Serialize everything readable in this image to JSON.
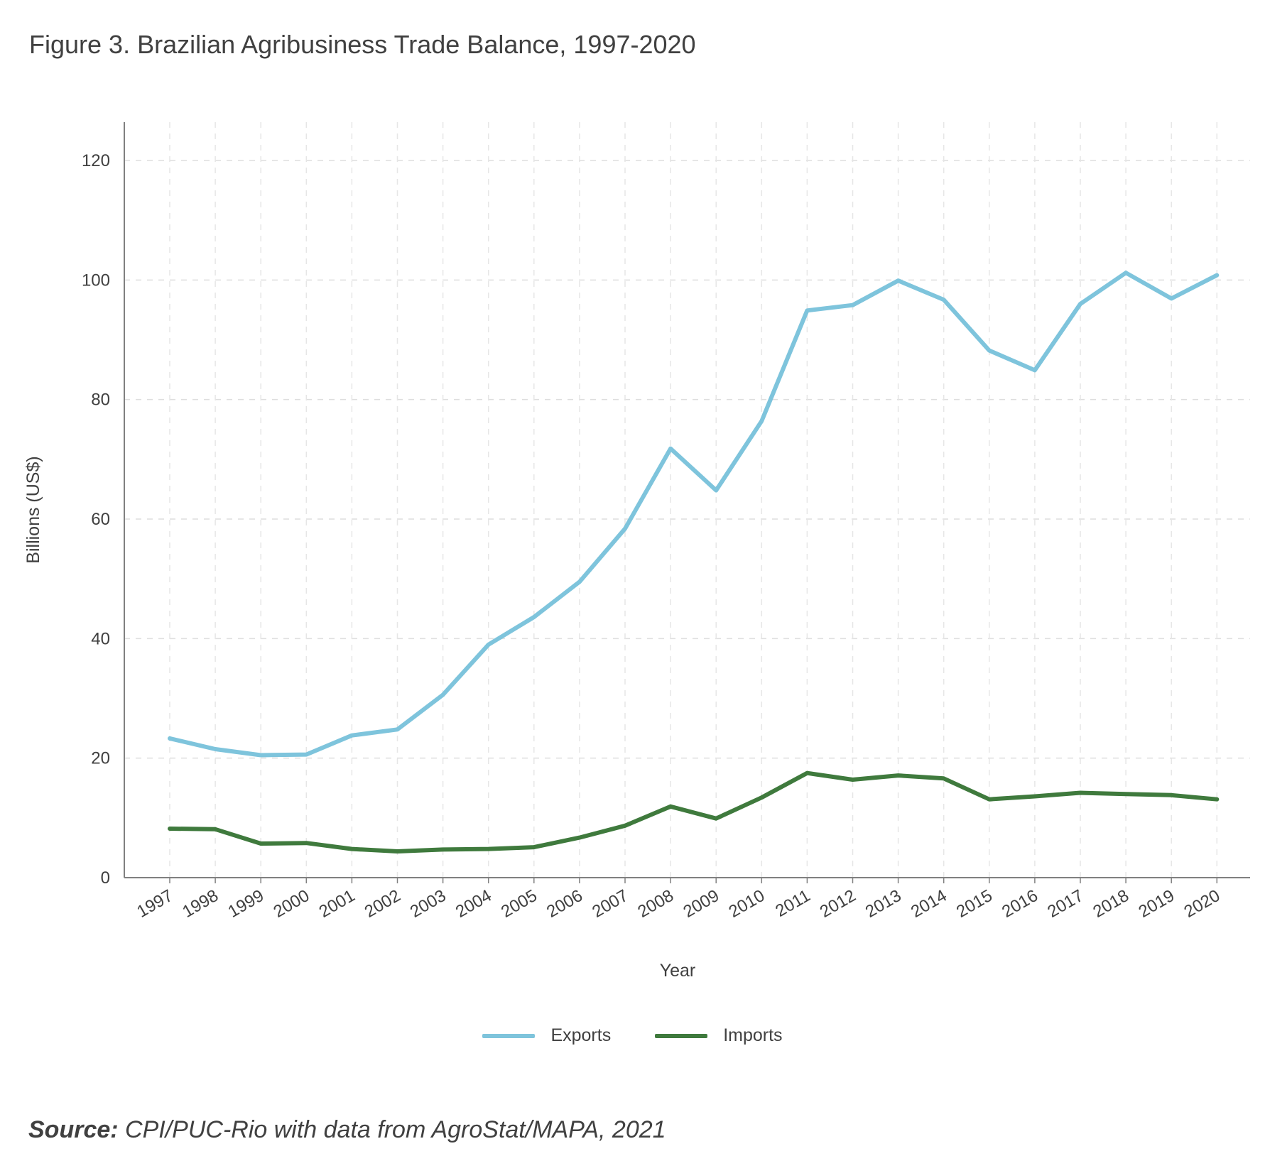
{
  "title": "Figure 3. Brazilian Agribusiness Trade Balance, 1997-2020",
  "source": {
    "label": "Source:",
    "text": " CPI/PUC-Rio with data from AgroStat/MAPA, 2021"
  },
  "chart_data": {
    "type": "line",
    "x": [
      1997,
      1998,
      1999,
      2000,
      2001,
      2002,
      2003,
      2004,
      2005,
      2006,
      2007,
      2008,
      2009,
      2010,
      2011,
      2012,
      2013,
      2014,
      2015,
      2016,
      2017,
      2018,
      2019,
      2020
    ],
    "x_tick_labels": [
      "1997",
      "1998",
      "1999",
      "2000",
      "2001",
      "2002",
      "2003",
      "2004",
      "2005",
      "2006",
      "2007",
      "2008",
      "2009",
      "2010",
      "2011",
      "2012",
      "2013",
      "2014",
      "2015",
      "2016",
      "2017",
      "2018",
      "2019",
      "2020"
    ],
    "series": [
      {
        "name": "Exports",
        "color": "#7ec4dc",
        "values": [
          23.3,
          21.5,
          20.5,
          20.6,
          23.8,
          24.8,
          30.6,
          39.0,
          43.6,
          49.5,
          58.4,
          71.8,
          64.8,
          76.4,
          94.9,
          95.8,
          99.9,
          96.7,
          88.2,
          84.9,
          96.0,
          101.2,
          96.9,
          100.8
        ]
      },
      {
        "name": "Imports",
        "color": "#3f7a3d",
        "values": [
          8.2,
          8.1,
          5.7,
          5.8,
          4.8,
          4.4,
          4.7,
          4.8,
          5.1,
          6.7,
          8.7,
          11.9,
          9.9,
          13.4,
          17.5,
          16.4,
          17.1,
          16.6,
          13.1,
          13.6,
          14.2,
          14.0,
          13.8,
          13.1
        ]
      }
    ],
    "xlabel": "Year",
    "ylabel": "Billions (US$)",
    "ylim": [
      0,
      120
    ],
    "y_ticks": [
      0,
      20,
      40,
      60,
      80,
      100,
      120
    ],
    "y_tick_labels": [
      "0",
      "20",
      "40",
      "60",
      "80",
      "100",
      "120"
    ],
    "grid": true,
    "legend_position": "bottom-center"
  }
}
